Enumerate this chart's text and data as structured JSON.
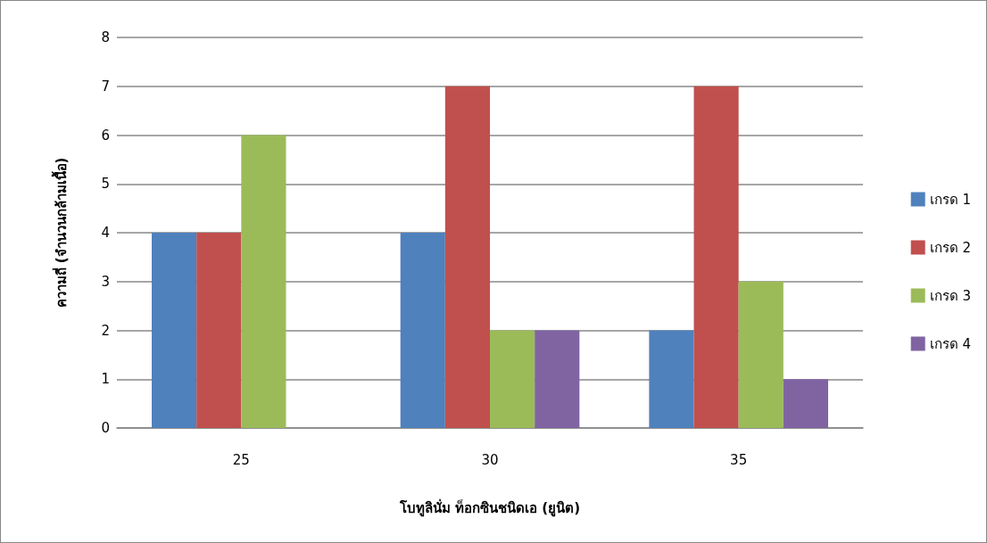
{
  "chart_data": {
    "type": "bar",
    "xlabel": "โบทูลินั่ม ท็อกซินชนิดเอ (ยูนิต)",
    "ylabel": "ความถี่ (จำนวนกล้ามเนื้อ)",
    "categories": [
      "25",
      "30",
      "35"
    ],
    "series": [
      {
        "name": "เกรด 1",
        "color": "#4f81bd",
        "values": [
          4,
          4,
          2
        ]
      },
      {
        "name": "เกรด 2",
        "color": "#c0504d",
        "values": [
          4,
          7,
          7
        ]
      },
      {
        "name": "เกรด 3",
        "color": "#9bbb59",
        "values": [
          6,
          2,
          3
        ]
      },
      {
        "name": "เกรด 4",
        "color": "#8064a2",
        "values": [
          0,
          2,
          1
        ]
      }
    ],
    "ylim": [
      0,
      8
    ],
    "yticks": [
      0,
      1,
      2,
      3,
      4,
      5,
      6,
      7,
      8
    ],
    "grid": "y",
    "legend": "right"
  }
}
